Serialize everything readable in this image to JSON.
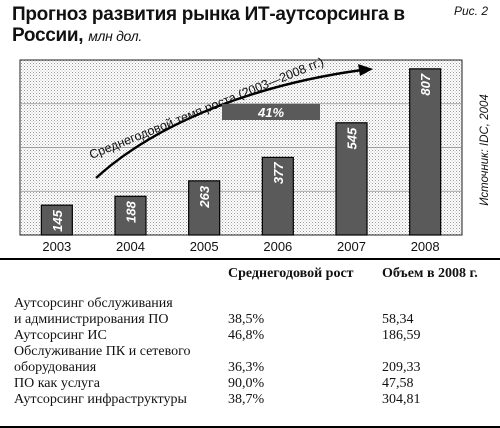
{
  "figure_label": "Рис. 2",
  "title": {
    "main": "Прогноз развития рынка ИТ-аутсорсинга в России,",
    "unit": "млн дол."
  },
  "source_note": "Источник: IDC, 2004",
  "chart_data": {
    "type": "bar",
    "categories": [
      "2003",
      "2004",
      "2005",
      "2006",
      "2007",
      "2008"
    ],
    "values": [
      145,
      188,
      263,
      377,
      545,
      807
    ],
    "ylim": [
      0,
      850
    ],
    "grid": true,
    "annotation": {
      "arrow_label": "Среднегодовой темп роста (2003—2008 гг.)",
      "rate_label": "41%"
    }
  },
  "table": {
    "headers": [
      "",
      "Среднегодовой рост",
      "Объем в 2008 г."
    ],
    "rows": [
      {
        "name_lines": [
          "Аутсорсинг обслуживания",
          "и администрирования ПО"
        ],
        "growth": "38,5%",
        "volume": "58,34"
      },
      {
        "name_lines": [
          "Аутсорсинг ИС"
        ],
        "growth": "46,8%",
        "volume": "186,59"
      },
      {
        "name_lines": [
          "Обслуживание ПК и сетевого",
          "оборудования"
        ],
        "growth": "36,3%",
        "volume": "209,33"
      },
      {
        "name_lines": [
          "ПО как услуга"
        ],
        "growth": "90,0%",
        "volume": "47,58"
      },
      {
        "name_lines": [
          "Аутсорсинг инфраструктуры"
        ],
        "growth": "38,7%",
        "volume": "304,81"
      }
    ]
  }
}
